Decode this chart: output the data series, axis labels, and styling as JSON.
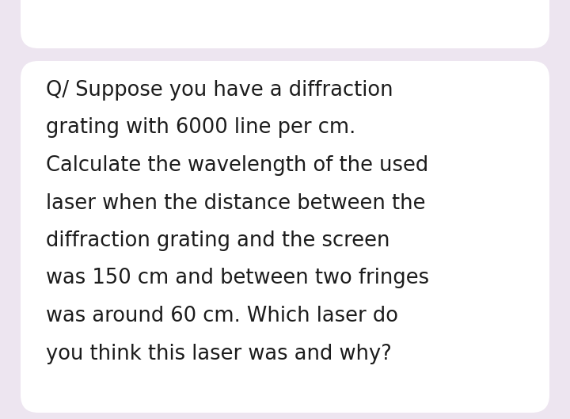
{
  "background_color": "#ede5f0",
  "card_color": "#ffffff",
  "text_color": "#1c1c1c",
  "top_card_color": "#ffffff",
  "lines": [
    "Q/ Suppose you have a diffraction",
    "grating with 6000 line per cm.",
    "Calculate the wavelength of the used",
    "laser when the distance between the",
    "diffraction grating and the screen",
    "was 150 cm and between two fringes",
    "was around 60 cm. Which laser do",
    "you think this laser was and why?"
  ],
  "font_size": 18.5,
  "font_family": "DejaVu Sans",
  "fig_width": 7.2,
  "fig_height": 5.29,
  "dpi": 100
}
